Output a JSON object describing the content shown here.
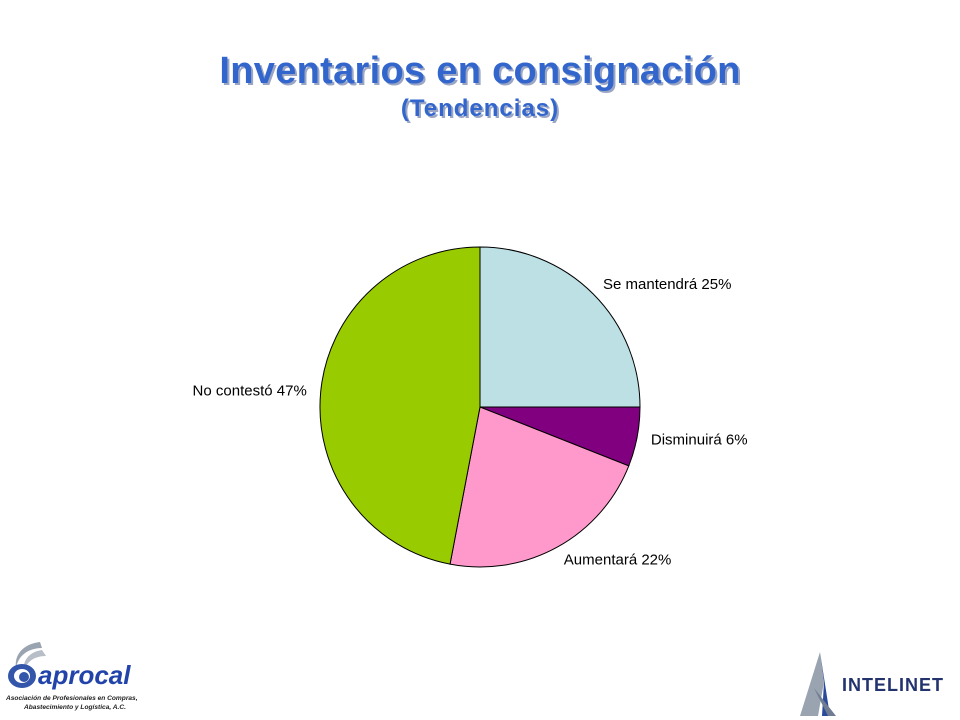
{
  "header": {
    "title": "Inventarios en consignación",
    "subtitle": "(Tendencias)"
  },
  "chart_data": {
    "type": "pie",
    "title": "Inventarios en consignación",
    "subtitle": "(Tendencias)",
    "slices": [
      {
        "label": "Se mantendrá",
        "value": 25,
        "display": "Se mantendrá 25%",
        "color": "#bce0e4"
      },
      {
        "label": "Disminuirá",
        "value": 6,
        "display": "Disminuirá 6%",
        "color": "#800080"
      },
      {
        "label": "Aumentará",
        "value": 22,
        "display": "Aumentará 22%",
        "color": "#ff99cc"
      },
      {
        "label": "No contestó",
        "value": 47,
        "display": "No contestó 47%",
        "color": "#99cc00"
      }
    ],
    "start": "12 o'clock",
    "direction": "clockwise",
    "legend": "none"
  },
  "logos": {
    "left": {
      "name": "aprocal",
      "tagline_1": "Asociación de Profesionales en Compras,",
      "tagline_2": "Abastecimiento y Logística, A.C."
    },
    "right": {
      "name": "INTELINET"
    }
  },
  "colors": {
    "title": "#3366cc",
    "title_shadow": "#9aa6c4"
  }
}
